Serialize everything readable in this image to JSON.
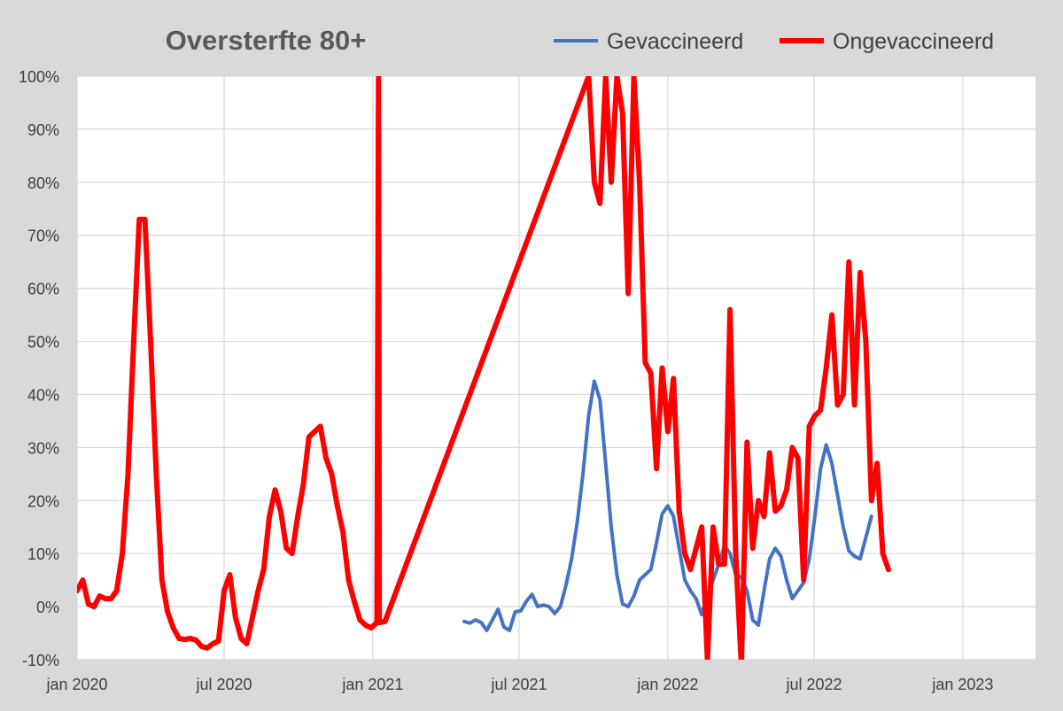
{
  "chart_data": {
    "type": "line",
    "title": "Oversterfte 80+",
    "xlabel": "",
    "ylabel": "",
    "x_tick_labels": [
      "jan 2020",
      "jul 2020",
      "jan 2021",
      "jul 2021",
      "jan 2022",
      "jul 2022",
      "jan 2023"
    ],
    "x_ticks": [
      "2020-01",
      "2020-07",
      "2021-01",
      "2021-07",
      "2022-01",
      "2022-07",
      "2023-01"
    ],
    "x_range": [
      "2020-01",
      "2023-04"
    ],
    "y_ticks": [
      -10,
      0,
      10,
      20,
      30,
      40,
      50,
      60,
      70,
      80,
      90,
      100
    ],
    "y_tick_labels": [
      "-10%",
      "0%",
      "10%",
      "20%",
      "30%",
      "40%",
      "50%",
      "60%",
      "70%",
      "80%",
      "90%",
      "100%"
    ],
    "ylim": [
      -10,
      100
    ],
    "y_unit": "%",
    "grid": true,
    "legend_position": "top-right",
    "colors": {
      "background": "#d9d9d9",
      "plot_background": "#ffffff",
      "grid": "#d9d9d9"
    },
    "series": [
      {
        "name": "Gevaccineerd",
        "color": "#4472c4",
        "points": [
          [
            "2021-04-24",
            -2.8
          ],
          [
            "2021-05-01",
            -3.1
          ],
          [
            "2021-05-08",
            -2.5
          ],
          [
            "2021-05-15",
            -3.0
          ],
          [
            "2021-05-22",
            -4.5
          ],
          [
            "2021-05-29",
            -2.5
          ],
          [
            "2021-06-05",
            -0.5
          ],
          [
            "2021-06-12",
            -3.8
          ],
          [
            "2021-06-19",
            -4.5
          ],
          [
            "2021-06-26",
            -1.0
          ],
          [
            "2021-07-03",
            -0.8
          ],
          [
            "2021-07-10",
            1.0
          ],
          [
            "2021-07-17",
            2.3
          ],
          [
            "2021-07-24",
            0.0
          ],
          [
            "2021-07-31",
            0.3
          ],
          [
            "2021-08-07",
            0.0
          ],
          [
            "2021-08-14",
            -1.3
          ],
          [
            "2021-08-21",
            0.0
          ],
          [
            "2021-08-28",
            4.0
          ],
          [
            "2021-09-04",
            9.0
          ],
          [
            "2021-09-11",
            16.0
          ],
          [
            "2021-09-18",
            25.0
          ],
          [
            "2021-09-25",
            36.0
          ],
          [
            "2021-10-02",
            42.5
          ],
          [
            "2021-10-09",
            39.0
          ],
          [
            "2021-10-16",
            27.0
          ],
          [
            "2021-10-23",
            15.0
          ],
          [
            "2021-10-30",
            6.0
          ],
          [
            "2021-11-06",
            0.5
          ],
          [
            "2021-11-13",
            0.0
          ],
          [
            "2021-11-20",
            2.0
          ],
          [
            "2021-11-27",
            5.0
          ],
          [
            "2021-12-04",
            6.0
          ],
          [
            "2021-12-11",
            7.0
          ],
          [
            "2021-12-18",
            12.0
          ],
          [
            "2021-12-25",
            17.5
          ],
          [
            "2022-01-01",
            19.0
          ],
          [
            "2022-01-08",
            17.0
          ],
          [
            "2022-01-15",
            11.0
          ],
          [
            "2022-01-22",
            5.0
          ],
          [
            "2022-01-29",
            3.0
          ],
          [
            "2022-02-05",
            1.5
          ],
          [
            "2022-02-12",
            -1.5
          ],
          [
            "2022-02-19",
            2.0
          ],
          [
            "2022-02-26",
            5.0
          ],
          [
            "2022-03-05",
            8.0
          ],
          [
            "2022-03-12",
            11.5
          ],
          [
            "2022-03-19",
            10.0
          ],
          [
            "2022-03-26",
            6.0
          ],
          [
            "2022-04-02",
            5.5
          ],
          [
            "2022-04-09",
            3.0
          ],
          [
            "2022-04-16",
            -2.5
          ],
          [
            "2022-04-23",
            -3.5
          ],
          [
            "2022-04-30",
            3.0
          ],
          [
            "2022-05-07",
            9.0
          ],
          [
            "2022-05-14",
            11.0
          ],
          [
            "2022-05-21",
            9.5
          ],
          [
            "2022-05-28",
            5.0
          ],
          [
            "2022-06-04",
            1.5
          ],
          [
            "2022-06-11",
            3.0
          ],
          [
            "2022-06-18",
            4.5
          ],
          [
            "2022-06-25",
            9.0
          ],
          [
            "2022-07-02",
            17.0
          ],
          [
            "2022-07-09",
            26.0
          ],
          [
            "2022-07-16",
            30.5
          ],
          [
            "2022-07-23",
            27.0
          ],
          [
            "2022-07-30",
            21.0
          ],
          [
            "2022-08-06",
            15.0
          ],
          [
            "2022-08-13",
            10.5
          ],
          [
            "2022-08-20",
            9.5
          ],
          [
            "2022-08-27",
            9.0
          ],
          [
            "2022-09-03",
            13.0
          ],
          [
            "2022-09-10",
            17.0
          ]
        ]
      },
      {
        "name": "Ongevaccineerd",
        "color": "#ff0000",
        "points": [
          [
            "2020-01-01",
            3.0
          ],
          [
            "2020-01-08",
            5.0
          ],
          [
            "2020-01-15",
            0.5
          ],
          [
            "2020-01-22",
            0.0
          ],
          [
            "2020-01-29",
            2.0
          ],
          [
            "2020-02-05",
            1.5
          ],
          [
            "2020-02-12",
            1.5
          ],
          [
            "2020-02-19",
            3.0
          ],
          [
            "2020-02-26",
            10.0
          ],
          [
            "2020-03-04",
            25.0
          ],
          [
            "2020-03-11",
            50.0
          ],
          [
            "2020-03-18",
            73.0
          ],
          [
            "2020-03-25",
            73.0
          ],
          [
            "2020-04-01",
            50.0
          ],
          [
            "2020-04-08",
            25.0
          ],
          [
            "2020-04-15",
            5.0
          ],
          [
            "2020-04-22",
            -1.0
          ],
          [
            "2020-04-29",
            -4.0
          ],
          [
            "2020-05-06",
            -6.0
          ],
          [
            "2020-05-13",
            -6.2
          ],
          [
            "2020-05-20",
            -6.0
          ],
          [
            "2020-05-27",
            -6.3
          ],
          [
            "2020-06-03",
            -7.5
          ],
          [
            "2020-06-10",
            -7.8
          ],
          [
            "2020-06-17",
            -7.0
          ],
          [
            "2020-06-24",
            -6.5
          ],
          [
            "2020-07-01",
            3.0
          ],
          [
            "2020-07-08",
            6.0
          ],
          [
            "2020-07-15",
            -2.0
          ],
          [
            "2020-07-22",
            -6.0
          ],
          [
            "2020-07-29",
            -7.0
          ],
          [
            "2020-08-05",
            -2.0
          ],
          [
            "2020-08-12",
            3.0
          ],
          [
            "2020-08-19",
            7.0
          ],
          [
            "2020-08-26",
            17.0
          ],
          [
            "2020-09-02",
            22.0
          ],
          [
            "2020-09-09",
            18.0
          ],
          [
            "2020-09-16",
            11.0
          ],
          [
            "2020-09-23",
            10.0
          ],
          [
            "2020-09-30",
            17.0
          ],
          [
            "2020-10-07",
            23.0
          ],
          [
            "2020-10-14",
            32.0
          ],
          [
            "2020-10-21",
            33.0
          ],
          [
            "2020-10-28",
            34.0
          ],
          [
            "2020-11-04",
            28.0
          ],
          [
            "2020-11-11",
            25.0
          ],
          [
            "2020-11-18",
            19.0
          ],
          [
            "2020-11-25",
            14.0
          ],
          [
            "2020-12-02",
            5.0
          ],
          [
            "2020-12-09",
            1.0
          ],
          [
            "2020-12-16",
            -2.5
          ],
          [
            "2020-12-23",
            -3.5
          ],
          [
            "2020-12-30",
            -4.0
          ],
          [
            "2021-01-06",
            -3.0
          ],
          [
            "2021-01-08",
            100.0
          ],
          [
            "2021-01-09",
            -3.0
          ],
          [
            "2021-01-16",
            -2.8
          ],
          [
            "2021-09-25",
            100.0
          ],
          [
            "2021-10-02",
            80.0
          ],
          [
            "2021-10-09",
            76.0
          ],
          [
            "2021-10-16",
            100.0
          ],
          [
            "2021-10-23",
            80.0
          ],
          [
            "2021-10-30",
            100.0
          ],
          [
            "2021-11-06",
            93.0
          ],
          [
            "2021-11-13",
            59.0
          ],
          [
            "2021-11-20",
            100.0
          ],
          [
            "2021-11-27",
            80.0
          ],
          [
            "2021-12-04",
            46.0
          ],
          [
            "2021-12-11",
            44.0
          ],
          [
            "2021-12-18",
            26.0
          ],
          [
            "2021-12-25",
            45.0
          ],
          [
            "2022-01-01",
            33.0
          ],
          [
            "2022-01-08",
            43.0
          ],
          [
            "2022-01-15",
            18.0
          ],
          [
            "2022-01-22",
            10.0
          ],
          [
            "2022-01-29",
            7.0
          ],
          [
            "2022-02-05",
            11.0
          ],
          [
            "2022-02-12",
            15.0
          ],
          [
            "2022-02-19",
            -10.0
          ],
          [
            "2022-02-26",
            15.0
          ],
          [
            "2022-03-05",
            8.0
          ],
          [
            "2022-03-12",
            8.0
          ],
          [
            "2022-03-19",
            56.0
          ],
          [
            "2022-03-26",
            10.0
          ],
          [
            "2022-04-02",
            -11.0
          ],
          [
            "2022-04-09",
            31.0
          ],
          [
            "2022-04-16",
            11.0
          ],
          [
            "2022-04-23",
            20.0
          ],
          [
            "2022-04-30",
            17.0
          ],
          [
            "2022-05-07",
            29.0
          ],
          [
            "2022-05-14",
            18.0
          ],
          [
            "2022-05-21",
            19.0
          ],
          [
            "2022-05-28",
            22.0
          ],
          [
            "2022-06-04",
            30.0
          ],
          [
            "2022-06-11",
            28.0
          ],
          [
            "2022-06-18",
            5.0
          ],
          [
            "2022-06-25",
            34.0
          ],
          [
            "2022-07-02",
            36.0
          ],
          [
            "2022-07-09",
            37.0
          ],
          [
            "2022-07-16",
            45.0
          ],
          [
            "2022-07-23",
            55.0
          ],
          [
            "2022-07-30",
            38.0
          ],
          [
            "2022-08-06",
            40.0
          ],
          [
            "2022-08-13",
            65.0
          ],
          [
            "2022-08-20",
            38.0
          ],
          [
            "2022-08-27",
            63.0
          ],
          [
            "2022-09-03",
            50.0
          ],
          [
            "2022-09-10",
            20.0
          ],
          [
            "2022-09-17",
            27.0
          ],
          [
            "2022-09-24",
            10.0
          ],
          [
            "2022-10-01",
            7.0
          ]
        ]
      }
    ]
  }
}
